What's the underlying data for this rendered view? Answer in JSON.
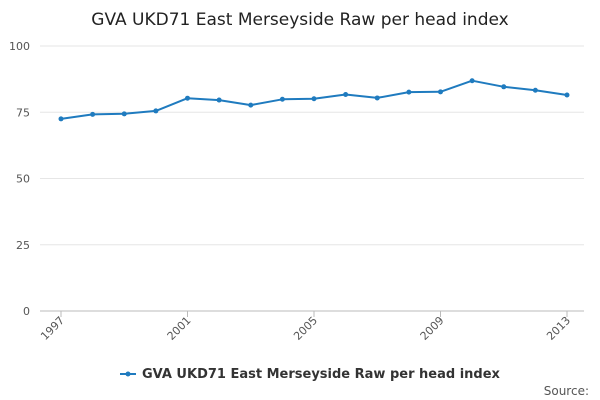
{
  "chart_data": {
    "type": "line",
    "title": "GVA UKD71 East Merseyside Raw per head index",
    "xlabel": "",
    "ylabel": "",
    "ylim": [
      0,
      100
    ],
    "yticks": [
      "0",
      "25",
      "50",
      "75",
      "100"
    ],
    "xlim": [
      1997,
      2013
    ],
    "xticks": [
      "1997",
      "2001",
      "2005",
      "2009",
      "2013"
    ],
    "grid": "horizontal",
    "legend_position": "bottom",
    "series": [
      {
        "name": "GVA UKD71 East Merseyside Raw per head index",
        "color": "#1f7bbf",
        "x": [
          1997,
          1998,
          1999,
          2000,
          2001,
          2002,
          2003,
          2004,
          2005,
          2006,
          2007,
          2008,
          2009,
          2010,
          2011,
          2012,
          2013
        ],
        "values": [
          72.5,
          74.2,
          74.4,
          75.5,
          80.3,
          79.6,
          77.7,
          79.9,
          80.1,
          81.7,
          80.4,
          82.6,
          82.7,
          86.9,
          84.6,
          83.3,
          81.5
        ]
      }
    ]
  },
  "footer": {
    "source_label": "Source:"
  }
}
